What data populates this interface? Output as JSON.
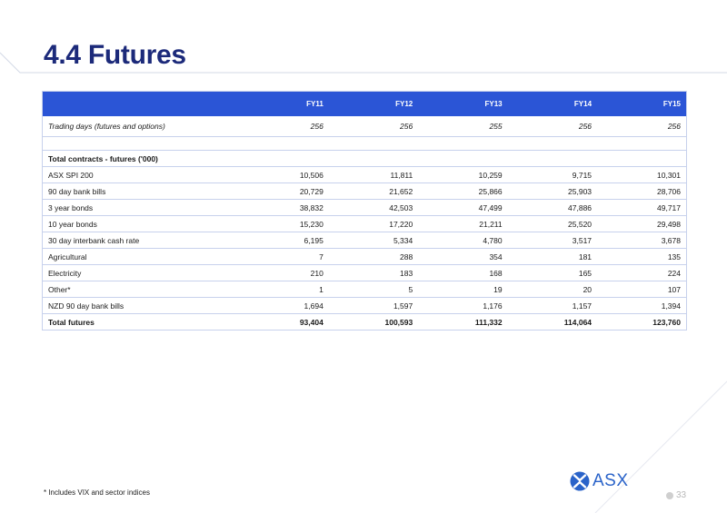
{
  "title": "4.4 Futures",
  "table": {
    "columns": [
      "FY11",
      "FY12",
      "FY13",
      "FY14",
      "FY15"
    ],
    "trading_days": {
      "label": "Trading days (futures and options)",
      "values": [
        "256",
        "256",
        "255",
        "256",
        "256"
      ]
    },
    "section_label": "Total contracts - futures ('000)",
    "rows": [
      {
        "label": "ASX SPI 200",
        "values": [
          "10,506",
          "11,811",
          "10,259",
          "9,715",
          "10,301"
        ]
      },
      {
        "label": "90 day bank bills",
        "values": [
          "20,729",
          "21,652",
          "25,866",
          "25,903",
          "28,706"
        ]
      },
      {
        "label": "3 year bonds",
        "values": [
          "38,832",
          "42,503",
          "47,499",
          "47,886",
          "49,717"
        ]
      },
      {
        "label": "10 year bonds",
        "values": [
          "15,230",
          "17,220",
          "21,211",
          "25,520",
          "29,498"
        ]
      },
      {
        "label": "30 day interbank cash rate",
        "values": [
          "6,195",
          "5,334",
          "4,780",
          "3,517",
          "3,678"
        ]
      },
      {
        "label": "Agricultural",
        "values": [
          "7",
          "288",
          "354",
          "181",
          "135"
        ]
      },
      {
        "label": "Electricity",
        "values": [
          "210",
          "183",
          "168",
          "165",
          "224"
        ]
      },
      {
        "label": "Other*",
        "values": [
          "1",
          "5",
          "19",
          "20",
          "107"
        ]
      },
      {
        "label": "NZD 90 day bank bills",
        "values": [
          "1,694",
          "1,597",
          "1,176",
          "1,157",
          "1,394"
        ]
      }
    ],
    "total": {
      "label": "Total futures",
      "values": [
        "93,404",
        "100,593",
        "111,332",
        "114,064",
        "123,760"
      ]
    }
  },
  "footnote": "* Includes VIX and sector indices",
  "logo_text": "ASX",
  "page_number": "33",
  "colors": {
    "title": "#1c2a7a",
    "header": "#2b55d6",
    "logo": "#2a63c9"
  }
}
